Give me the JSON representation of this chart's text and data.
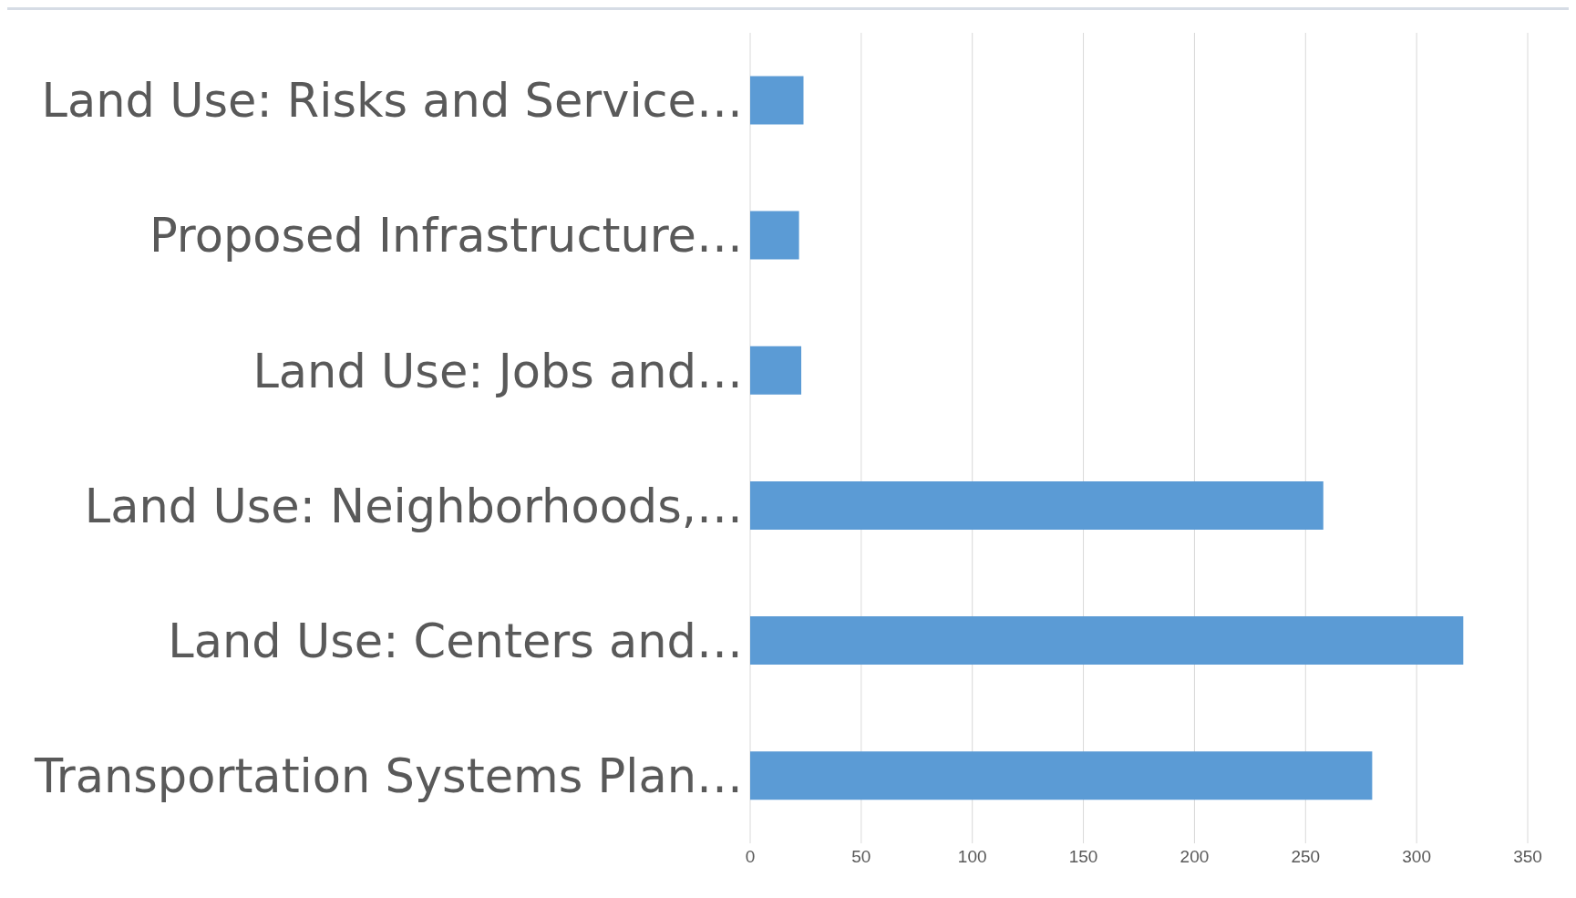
{
  "chart_data": {
    "type": "bar",
    "orientation": "horizontal",
    "categories": [
      "Land Use: Risks and Service…",
      "Proposed Infrastructure…",
      "Land Use: Jobs and…",
      "Land Use: Neighborhoods,…",
      "Land Use: Centers and…",
      "Transportation Systems Plan…"
    ],
    "values": [
      24,
      22,
      23,
      258,
      321,
      280
    ],
    "color": "#5b9bd5",
    "xlim": [
      0,
      350
    ],
    "xticks": [
      0,
      50,
      100,
      150,
      200,
      250,
      300,
      350
    ],
    "grid": "x"
  }
}
